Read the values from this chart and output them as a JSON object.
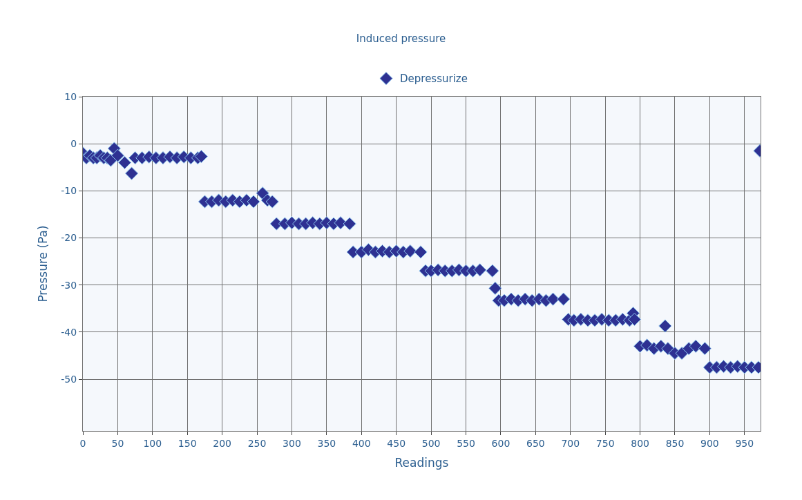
{
  "chart_data": {
    "type": "scatter",
    "title": "Induced pressure",
    "xlabel": "Readings",
    "ylabel": "Pressure (Pa)",
    "xlim": [
      0,
      973
    ],
    "xticks": [
      0,
      50,
      100,
      150,
      200,
      250,
      300,
      350,
      400,
      450,
      500,
      550,
      600,
      650,
      700,
      750,
      800,
      850,
      900,
      950
    ],
    "ylim": [
      -61,
      10
    ],
    "yticks": [
      -50,
      -40,
      -30,
      -20,
      -10,
      0,
      10
    ],
    "grid": true,
    "legend": "top",
    "marker": "diamond",
    "series": [
      {
        "name": "Depressurize",
        "color": "#2e3192",
        "x": [
          0,
          5,
          10,
          15,
          20,
          25,
          30,
          35,
          40,
          45,
          50,
          60,
          70,
          75,
          85,
          95,
          105,
          115,
          125,
          135,
          145,
          155,
          165,
          170,
          175,
          185,
          195,
          205,
          215,
          225,
          235,
          245,
          258,
          265,
          272,
          278,
          290,
          300,
          310,
          320,
          330,
          340,
          350,
          360,
          370,
          383,
          388,
          400,
          410,
          420,
          430,
          440,
          450,
          460,
          470,
          485,
          492,
          500,
          510,
          520,
          530,
          540,
          550,
          560,
          570,
          588,
          592,
          597,
          605,
          615,
          625,
          635,
          645,
          655,
          665,
          675,
          690,
          697,
          705,
          715,
          725,
          735,
          745,
          755,
          765,
          775,
          785,
          790,
          792,
          800,
          810,
          820,
          830,
          836,
          840,
          850,
          860,
          870,
          880,
          893,
          900,
          910,
          920,
          930,
          940,
          950,
          960,
          970,
          972
        ],
        "values": [
          -2,
          -3,
          -2.5,
          -3,
          -3,
          -2.5,
          -3,
          -3,
          -3.5,
          -1,
          -2.5,
          -4,
          -6.3,
          -3,
          -3,
          -2.8,
          -3,
          -3,
          -2.8,
          -3,
          -2.8,
          -3,
          -3,
          -2.7,
          -12.3,
          -12.3,
          -12,
          -12.3,
          -12,
          -12.3,
          -12,
          -12.3,
          -10.5,
          -12,
          -12.3,
          -17,
          -17,
          -16.8,
          -17,
          -17,
          -16.8,
          -17,
          -16.8,
          -17,
          -16.8,
          -17,
          -23,
          -23,
          -22.5,
          -23,
          -22.8,
          -23,
          -22.8,
          -23,
          -22.8,
          -23,
          -27,
          -27,
          -26.8,
          -27,
          -27,
          -26.8,
          -27,
          -27,
          -26.8,
          -27,
          -30.7,
          -33.3,
          -33.3,
          -33,
          -33.3,
          -33,
          -33.3,
          -33,
          -33.3,
          -33,
          -33,
          -37.3,
          -37.5,
          -37.3,
          -37.5,
          -37.5,
          -37.3,
          -37.5,
          -37.5,
          -37.3,
          -37.5,
          -36,
          -37.3,
          -43,
          -42.8,
          -43.5,
          -43,
          -38.7,
          -43.5,
          -44.5,
          -44.5,
          -43.5,
          -43,
          -43.5,
          -47.5,
          -47.5,
          -47.3,
          -47.5,
          -47.3,
          -47.5,
          -47.5,
          -47.5,
          -1.5
        ]
      }
    ]
  }
}
